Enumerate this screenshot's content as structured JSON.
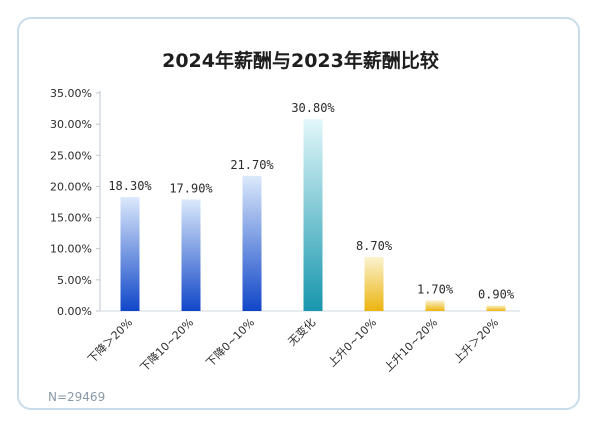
{
  "chart_data": {
    "type": "bar",
    "title": "2024年薪酬与2023年薪酬比较",
    "categories": [
      "下降＞20%",
      "下降10~20%",
      "下降0~10%",
      "无变化",
      "上升0~10%",
      "上升10~20%",
      "上升＞20%"
    ],
    "values": [
      18.3,
      17.9,
      21.7,
      30.8,
      8.7,
      1.7,
      0.9
    ],
    "value_labels": [
      "18.30%",
      "17.90%",
      "21.70%",
      "30.80%",
      "8.70%",
      "1.70%",
      "0.90%"
    ],
    "y_ticks": [
      "0.00%",
      "5.00%",
      "10.00%",
      "15.00%",
      "20.00%",
      "25.00%",
      "30.00%",
      "35.00%"
    ],
    "ylim": [
      0,
      35
    ],
    "grid": false,
    "xlabel": "",
    "ylabel": "",
    "colors": {
      "decrease_top": "#dbe9fb",
      "decrease_bottom": "#1046c8",
      "no_change_top": "#e2f7fa",
      "no_change_bottom": "#1796ad",
      "increase_top": "#fbf3d0",
      "increase_bottom": "#ecb40e"
    }
  },
  "sample_note": "N=29469"
}
